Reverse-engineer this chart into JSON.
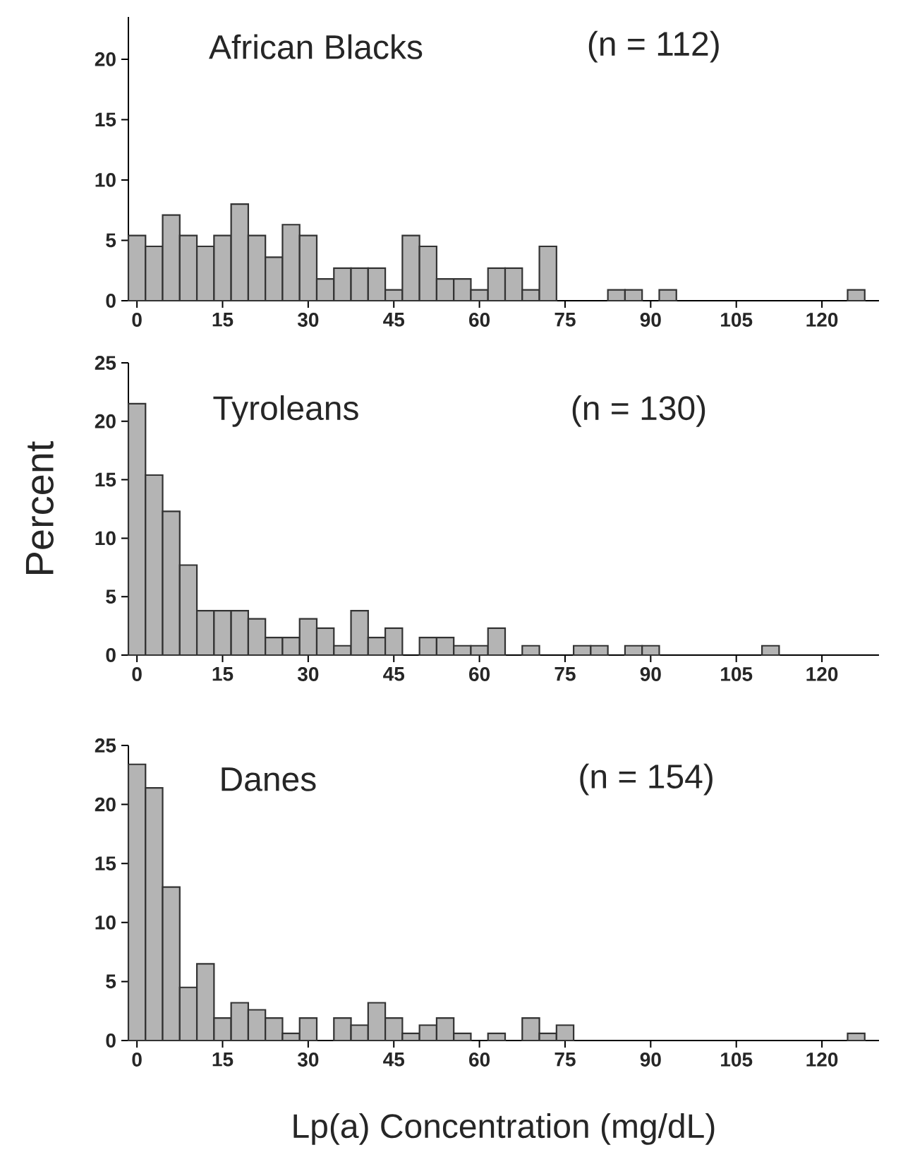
{
  "chart_data": [
    {
      "type": "histogram",
      "title": "African Blacks",
      "subtitle": "(n = 112)",
      "color": "#b4b4b4",
      "bins": [
        -1.5,
        1.5,
        4.5,
        7.5,
        10.5,
        13.5,
        16.5,
        19.5,
        22.5,
        25.5,
        28.5,
        31.5,
        34.5,
        37.5,
        40.5,
        43.5,
        46.5,
        49.5,
        52.5,
        55.5,
        58.5,
        61.5,
        64.5,
        67.5,
        70.5,
        73.5,
        76.5,
        79.5,
        82.5,
        85.5,
        88.5,
        91.5,
        94.5,
        97.5,
        100.5,
        103.5,
        106.5,
        109.5,
        112.5,
        115.5,
        118.5,
        121.5,
        124.5,
        127.5
      ],
      "values": [
        5.4,
        4.5,
        7.1,
        5.4,
        4.5,
        5.4,
        8.0,
        5.4,
        3.6,
        6.3,
        5.4,
        1.8,
        2.7,
        2.7,
        2.7,
        0.9,
        5.4,
        4.5,
        1.8,
        1.8,
        0.9,
        2.7,
        2.7,
        0.9,
        4.5,
        0,
        0,
        0,
        0.9,
        0.9,
        0,
        0.9,
        0,
        0,
        0,
        0,
        0,
        0,
        0,
        0,
        0,
        0,
        0.9
      ],
      "xlim": [
        -1.5,
        130
      ],
      "ylim": [
        0,
        23.5
      ],
      "xticks": [
        0,
        15,
        30,
        45,
        60,
        75,
        90,
        105,
        120
      ],
      "yticks": [
        0,
        5,
        10,
        15,
        20
      ]
    },
    {
      "type": "histogram",
      "title": "Tyroleans",
      "subtitle": "(n = 130)",
      "ylabel": "Percent",
      "color": "#b4b4b4",
      "bins": [
        -1.5,
        1.5,
        4.5,
        7.5,
        10.5,
        13.5,
        16.5,
        19.5,
        22.5,
        25.5,
        28.5,
        31.5,
        34.5,
        37.5,
        40.5,
        43.5,
        46.5,
        49.5,
        52.5,
        55.5,
        58.5,
        61.5,
        64.5,
        67.5,
        70.5,
        73.5,
        76.5,
        79.5,
        82.5,
        85.5,
        88.5,
        91.5,
        94.5,
        97.5,
        100.5,
        103.5,
        106.5,
        109.5,
        112.5,
        115.5,
        118.5,
        121.5,
        124.5,
        127.5
      ],
      "values": [
        21.5,
        15.4,
        12.3,
        7.7,
        3.8,
        3.8,
        3.8,
        3.1,
        1.5,
        1.5,
        3.1,
        2.3,
        0.8,
        3.8,
        1.5,
        2.3,
        0,
        1.5,
        1.5,
        0.8,
        0.8,
        2.3,
        0,
        0.8,
        0,
        0,
        0.8,
        0.8,
        0,
        0.8,
        0.8,
        0,
        0,
        0,
        0,
        0,
        0,
        0.8,
        0,
        0,
        0,
        0,
        0
      ],
      "xlim": [
        -1.5,
        130
      ],
      "ylim": [
        0,
        25
      ],
      "xticks": [
        0,
        15,
        30,
        45,
        60,
        75,
        90,
        105,
        120
      ],
      "yticks": [
        0,
        5,
        10,
        15,
        20,
        25
      ]
    },
    {
      "type": "histogram",
      "title": "Danes",
      "subtitle": "(n = 154)",
      "xlabel": "Lp(a) Concentration  (mg/dL)",
      "color": "#b4b4b4",
      "bins": [
        -1.5,
        1.5,
        4.5,
        7.5,
        10.5,
        13.5,
        16.5,
        19.5,
        22.5,
        25.5,
        28.5,
        31.5,
        34.5,
        37.5,
        40.5,
        43.5,
        46.5,
        49.5,
        52.5,
        55.5,
        58.5,
        61.5,
        64.5,
        67.5,
        70.5,
        73.5,
        76.5,
        79.5,
        82.5,
        85.5,
        88.5,
        91.5,
        94.5,
        97.5,
        100.5,
        103.5,
        106.5,
        109.5,
        112.5,
        115.5,
        118.5,
        121.5,
        124.5,
        127.5
      ],
      "values": [
        23.4,
        21.4,
        13.0,
        4.5,
        6.5,
        1.9,
        3.2,
        2.6,
        1.9,
        0.6,
        1.9,
        0,
        1.9,
        1.3,
        3.2,
        1.9,
        0.6,
        1.3,
        1.9,
        0.6,
        0,
        0.6,
        0,
        1.9,
        0.6,
        1.3,
        0,
        0,
        0,
        0,
        0,
        0,
        0,
        0,
        0,
        0,
        0,
        0,
        0,
        0,
        0,
        0,
        0.6
      ],
      "xlim": [
        -1.5,
        130
      ],
      "ylim": [
        0,
        25
      ],
      "xticks": [
        0,
        15,
        30,
        45,
        60,
        75,
        90,
        105,
        120
      ],
      "yticks": [
        0,
        5,
        10,
        15,
        20,
        25
      ]
    }
  ]
}
